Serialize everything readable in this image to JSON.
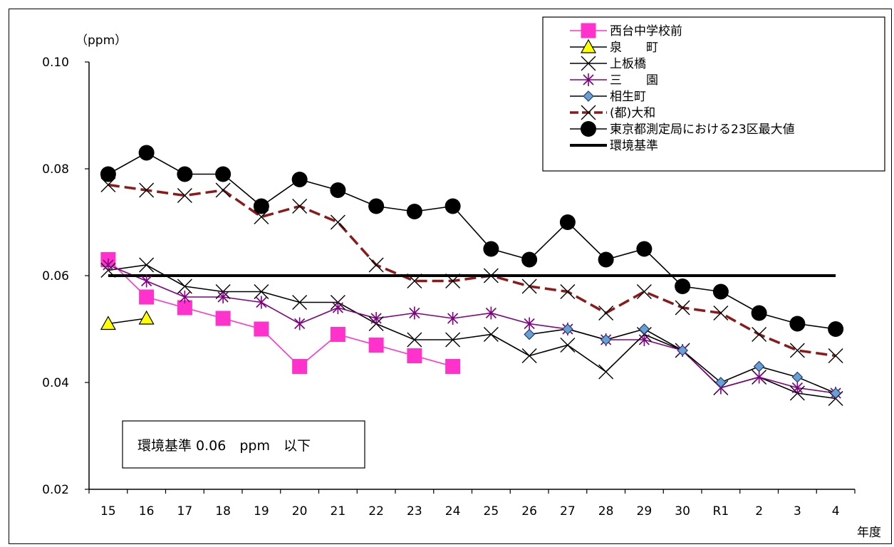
{
  "chart_data": {
    "type": "line",
    "categories": [
      "15",
      "16",
      "17",
      "18",
      "19",
      "20",
      "21",
      "22",
      "23",
      "24",
      "25",
      "26",
      "27",
      "28",
      "29",
      "30",
      "R1",
      "2",
      "3",
      "4"
    ],
    "unit_label": "（ppm）",
    "xlabel": "年度",
    "ylim": [
      0.02,
      0.1
    ],
    "yticks": [
      "0.02",
      "0.04",
      "0.06",
      "0.08",
      "0.10"
    ],
    "annotation": "環境基準 0.06　ppm　以下",
    "legend_position": "top-right",
    "series": [
      {
        "name": "西台中学校前",
        "color": "#ff33cc",
        "marker": "square",
        "values": [
          0.063,
          0.056,
          0.054,
          0.052,
          0.05,
          0.043,
          0.049,
          0.047,
          0.045,
          0.043,
          null,
          null,
          null,
          null,
          null,
          null,
          null,
          null,
          null,
          null
        ]
      },
      {
        "name": "泉　　町",
        "color": "#000000",
        "marker": "triangle",
        "values": [
          0.051,
          0.052,
          null,
          null,
          null,
          null,
          null,
          null,
          null,
          null,
          null,
          null,
          null,
          null,
          null,
          null,
          null,
          null,
          null,
          null
        ]
      },
      {
        "name": "上板橋",
        "color": "#000000",
        "marker": "x",
        "values": [
          0.061,
          0.062,
          0.058,
          0.057,
          0.057,
          0.055,
          0.055,
          0.051,
          0.048,
          0.048,
          0.049,
          0.045,
          0.047,
          0.042,
          0.049,
          0.046,
          0.039,
          0.041,
          0.038,
          0.037
        ]
      },
      {
        "name": "三　　園",
        "color": "#800080",
        "marker": "star",
        "values": [
          0.062,
          0.059,
          0.056,
          0.056,
          0.055,
          0.051,
          0.054,
          0.052,
          0.053,
          0.052,
          0.053,
          0.051,
          0.05,
          0.048,
          0.048,
          0.046,
          0.039,
          0.041,
          0.039,
          0.038
        ]
      },
      {
        "name": "相生町",
        "color": "#000000",
        "marker": "diamond",
        "values": [
          null,
          null,
          null,
          null,
          null,
          null,
          null,
          null,
          null,
          null,
          null,
          0.049,
          0.05,
          0.048,
          0.05,
          0.046,
          0.04,
          0.043,
          0.041,
          0.038
        ]
      },
      {
        "name": "(都)大和",
        "color": "#8b1a1a",
        "marker": "x",
        "dashed": true,
        "values": [
          0.077,
          0.076,
          0.075,
          0.076,
          0.071,
          0.073,
          0.07,
          0.062,
          0.059,
          0.059,
          0.06,
          0.058,
          0.057,
          0.053,
          0.057,
          0.054,
          0.053,
          0.049,
          0.046,
          0.045
        ]
      },
      {
        "name": "東京都測定局における23区最大値",
        "color": "#000000",
        "marker": "circle",
        "values": [
          0.079,
          0.083,
          0.079,
          0.079,
          0.073,
          0.078,
          0.076,
          0.073,
          0.072,
          0.073,
          0.065,
          0.063,
          0.07,
          0.063,
          0.065,
          0.058,
          0.057,
          0.053,
          0.051,
          0.05
        ]
      },
      {
        "name": "環境基準",
        "color": "#000000",
        "marker": "none",
        "thick": true,
        "values": [
          0.06,
          0.06,
          0.06,
          0.06,
          0.06,
          0.06,
          0.06,
          0.06,
          0.06,
          0.06,
          0.06,
          0.06,
          0.06,
          0.06,
          0.06,
          0.06,
          0.06,
          0.06,
          0.06,
          0.06
        ]
      }
    ]
  }
}
